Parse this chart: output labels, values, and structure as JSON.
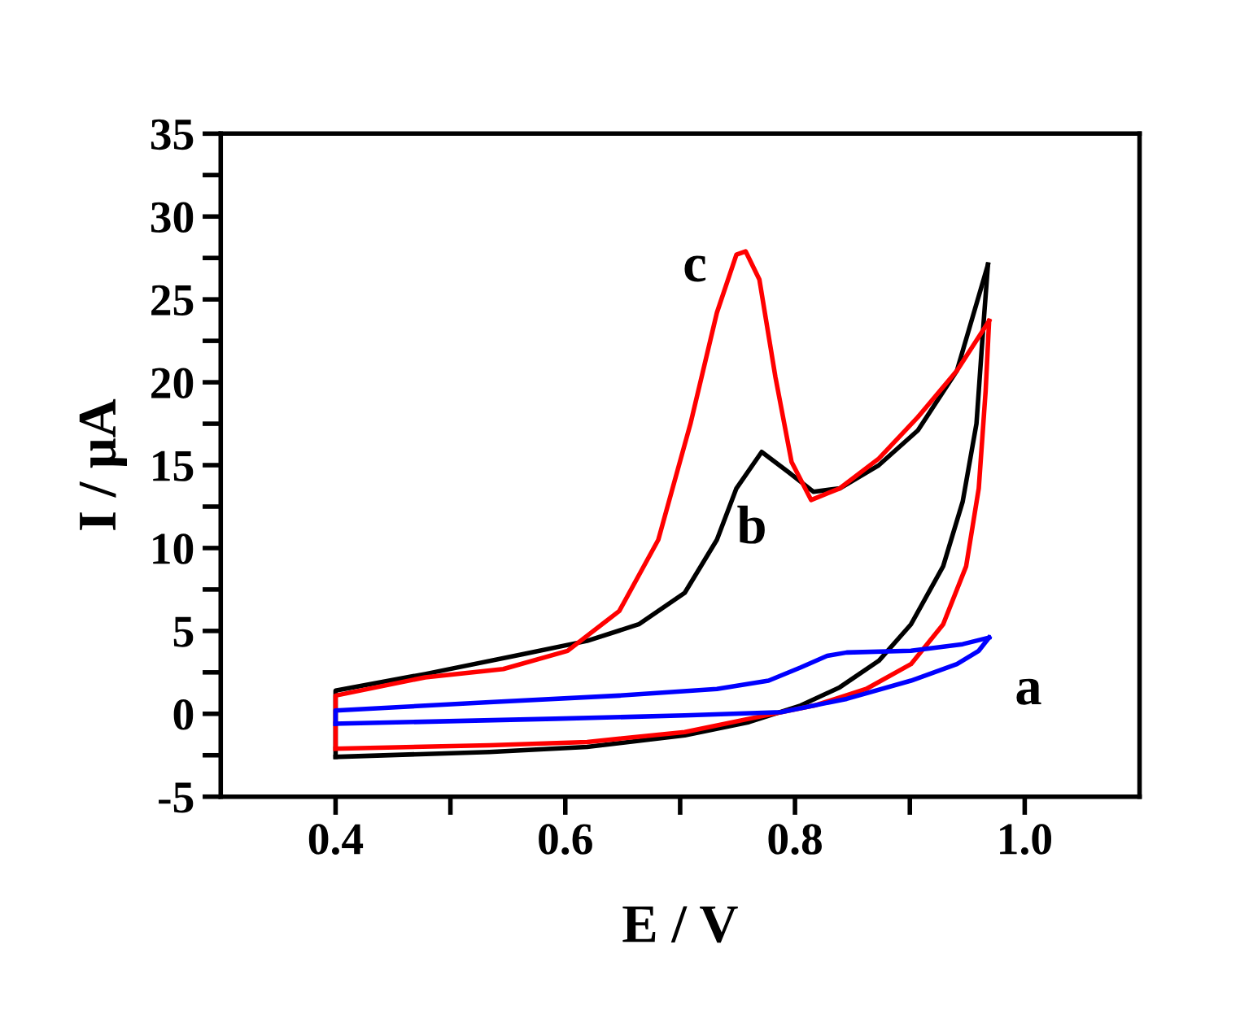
{
  "chart_data": {
    "type": "line",
    "xlabel": "E / V",
    "ylabel": "I / μA",
    "xlim": [
      0.3,
      1.1
    ],
    "ylim": [
      -5,
      35
    ],
    "xticks": [
      0.4,
      {
        "value": 0.5,
        "label": null
      },
      0.6,
      {
        "value": 0.7,
        "label": null
      },
      0.8,
      {
        "value": 0.9,
        "label": null
      },
      {
        "value": 1.0,
        "label": "1.0"
      }
    ],
    "yticks": [
      -5,
      {
        "value": -2.5,
        "label": null
      },
      0,
      {
        "value": 2.5,
        "label": null
      },
      5,
      {
        "value": 7.5,
        "label": null
      },
      10,
      {
        "value": 12.5,
        "label": null
      },
      15,
      {
        "value": 17.5,
        "label": null
      },
      20,
      {
        "value": 22.5,
        "label": null
      },
      25,
      {
        "value": 27.5,
        "label": null
      },
      30,
      {
        "value": 32.5,
        "label": null
      },
      35
    ],
    "grid": false,
    "legend": false,
    "marker": "none",
    "line_style": "solid",
    "series": [
      {
        "color": "#000000",
        "x": [
          0.4,
          0.4,
          0.478,
          0.563,
          0.619,
          0.664,
          0.704,
          0.732,
          0.749,
          0.771,
          0.794,
          0.816,
          0.839,
          0.873,
          0.907,
          0.941,
          0.968
        ],
        "values": [
          -2.6,
          1.4,
          2.4,
          3.6,
          4.4,
          5.4,
          7.3,
          10.5,
          13.6,
          15.8,
          14.6,
          13.4,
          13.6,
          15.0,
          17.1,
          20.7,
          27.1
        ]
      },
      {
        "color": "#000000",
        "x": [
          0.968,
          0.964,
          0.958,
          0.946,
          0.929,
          0.901,
          0.873,
          0.839,
          0.805,
          0.76,
          0.704,
          0.619,
          0.534,
          0.4
        ],
        "values": [
          27.1,
          23.4,
          17.5,
          12.8,
          8.9,
          5.4,
          3.2,
          1.6,
          0.5,
          -0.5,
          -1.3,
          -2.0,
          -2.3,
          -2.6
        ]
      },
      {
        "color": "#ff0000",
        "x": [
          0.4,
          0.4,
          0.478,
          0.546,
          0.602,
          0.647,
          0.681,
          0.709,
          0.732,
          0.749,
          0.757,
          0.769,
          0.783,
          0.797,
          0.814,
          0.839,
          0.873,
          0.907,
          0.941,
          0.969
        ],
        "values": [
          -2.1,
          1.1,
          2.2,
          2.7,
          3.8,
          6.2,
          10.5,
          17.5,
          24.2,
          27.7,
          27.9,
          26.2,
          20.3,
          15.2,
          12.9,
          13.6,
          15.4,
          17.9,
          20.7,
          23.7
        ]
      },
      {
        "color": "#ff0000",
        "x": [
          0.969,
          0.966,
          0.96,
          0.949,
          0.929,
          0.901,
          0.862,
          0.817,
          0.76,
          0.704,
          0.619,
          0.534,
          0.4
        ],
        "values": [
          23.7,
          19.5,
          13.6,
          8.9,
          5.4,
          3.0,
          1.5,
          0.5,
          -0.3,
          -1.1,
          -1.7,
          -1.9,
          -2.1
        ]
      },
      {
        "color": "#0000ff",
        "x": [
          0.4,
          0.4,
          0.534,
          0.647,
          0.732,
          0.777,
          0.805,
          0.828,
          0.845,
          0.901,
          0.946,
          0.969
        ],
        "values": [
          -0.6,
          0.2,
          0.7,
          1.1,
          1.5,
          2.0,
          2.8,
          3.5,
          3.7,
          3.8,
          4.2,
          4.6
        ]
      },
      {
        "color": "#0000ff",
        "x": [
          0.969,
          0.96,
          0.941,
          0.901,
          0.845,
          0.788,
          0.704,
          0.591,
          0.4
        ],
        "values": [
          4.6,
          3.8,
          3.0,
          2.0,
          0.9,
          0.1,
          -0.1,
          -0.3,
          -0.6
        ]
      }
    ],
    "annotations": [
      "a",
      "b",
      "c"
    ]
  }
}
